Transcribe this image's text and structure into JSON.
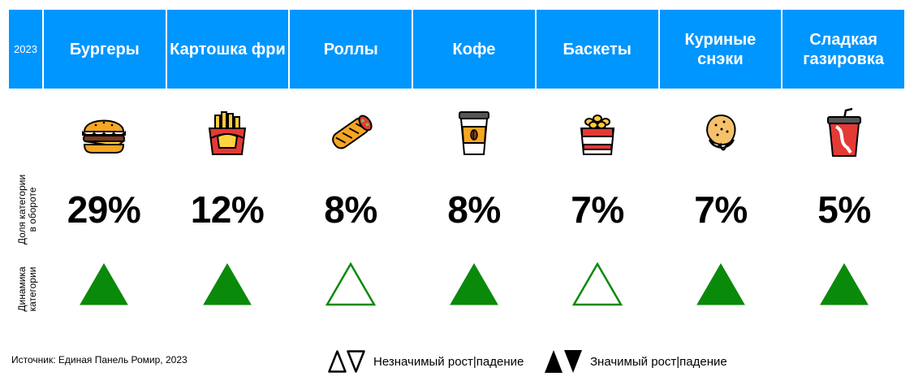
{
  "header": {
    "year": "2023",
    "categories": [
      {
        "label": "Бургеры",
        "icon": "burger-icon"
      },
      {
        "label": "Картошка фри",
        "icon": "fries-icon"
      },
      {
        "label": "Роллы",
        "icon": "wrap-roll-icon"
      },
      {
        "label": "Кофе",
        "icon": "coffee-cup-icon"
      },
      {
        "label": "Баскеты",
        "icon": "basket-icon"
      },
      {
        "label": "Куриные снэки",
        "icon": "chicken-nugget-icon"
      },
      {
        "label": "Сладкая газировка",
        "icon": "soda-cup-icon"
      }
    ]
  },
  "row_labels": {
    "share": "Доля категории в обороте",
    "dynamics": "Динамика категории"
  },
  "shares": [
    "29%",
    "12%",
    "8%",
    "8%",
    "7%",
    "7%",
    "5%"
  ],
  "legend": {
    "not_significant": "Незначимый рост|падение",
    "significant": "Значимый рост|падение"
  },
  "source": "Источник: Единая Панель Ромир, 2023",
  "colors": {
    "header_bg": "#0096ff",
    "header_text": "#ffffff",
    "growth_green": "#0a8a0a"
  },
  "chart_data": {
    "type": "table",
    "categories": [
      "Бургеры",
      "Картошка фри",
      "Роллы",
      "Кофе",
      "Баскеты",
      "Куриные снэки",
      "Сладкая газировка"
    ],
    "series": [
      {
        "name": "Доля категории в обороте",
        "values": [
          29,
          12,
          8,
          8,
          7,
          7,
          5
        ]
      },
      {
        "name": "Динамика категории",
        "values": [
          "significant-growth",
          "significant-growth",
          "not-significant-growth",
          "significant-growth",
          "not-significant-growth",
          "significant-growth",
          "significant-growth"
        ]
      }
    ]
  }
}
